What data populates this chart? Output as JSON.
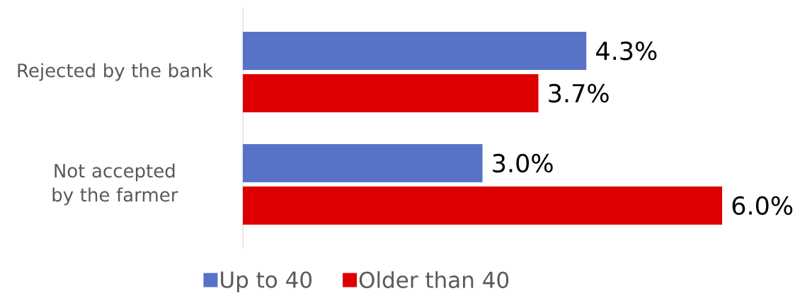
{
  "chart_data": {
    "type": "bar",
    "orientation": "horizontal",
    "categories": [
      "Rejected by the bank",
      "Not accepted by the farmer"
    ],
    "series": [
      {
        "name": "Up to 40",
        "color": "#5773c7",
        "values": [
          4.3,
          3.0
        ],
        "value_labels": [
          "4.3%",
          "3.0%"
        ]
      },
      {
        "name": "Older than 40",
        "color": "#dd0000",
        "values": [
          3.7,
          6.0
        ],
        "value_labels": [
          "3.7%",
          "6.0%"
        ]
      }
    ],
    "xlim": [
      0,
      6
    ],
    "tick_labels": "y",
    "legend": "bottom",
    "grid": false
  }
}
